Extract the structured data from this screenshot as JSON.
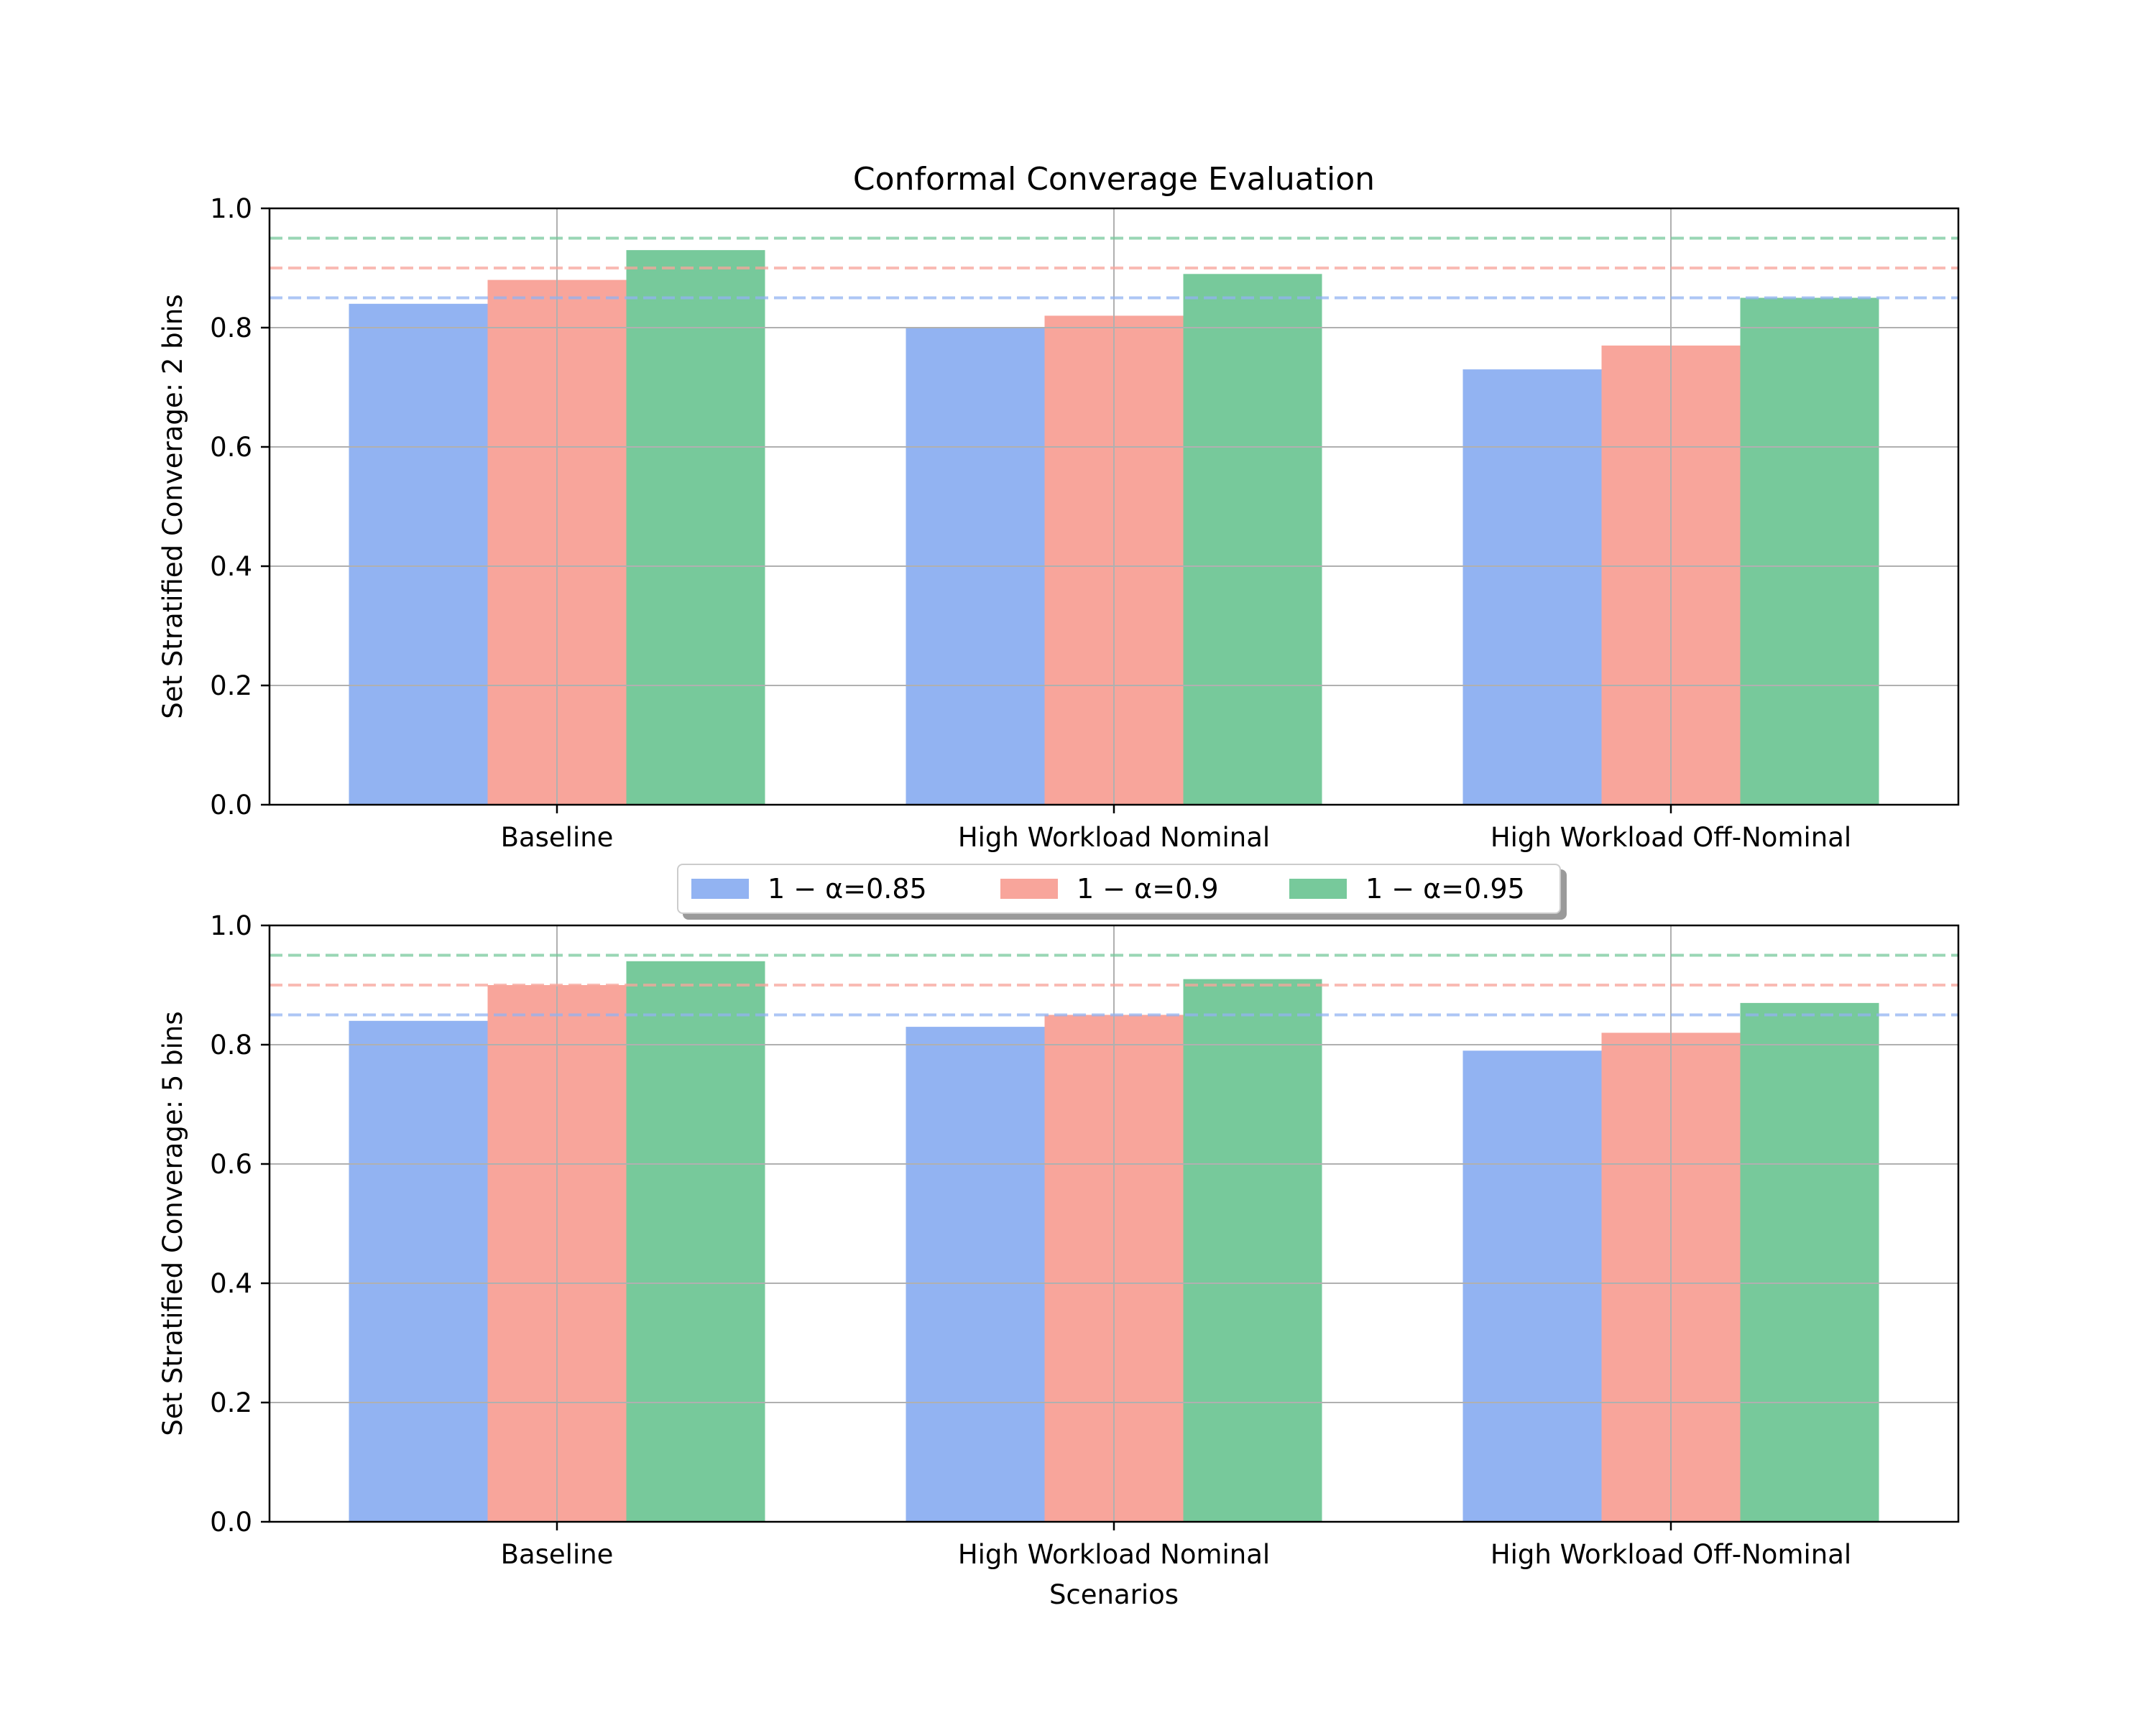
{
  "figure": {
    "title": "Conformal Converage Evaluation"
  },
  "legend": {
    "placement": "between-panels",
    "items": [
      {
        "label": "1 − α=0.85",
        "color": "#92b3f2"
      },
      {
        "label": "1 − α=0.9",
        "color": "#f8a59b"
      },
      {
        "label": "1 − α=0.95",
        "color": "#77c99b"
      }
    ]
  },
  "chart_data": [
    {
      "type": "bar",
      "title": "Conformal Converage Evaluation",
      "xlabel": "",
      "ylabel": "Set Stratified Converage: 2 bins",
      "categories": [
        "Baseline",
        "High Workload Nominal",
        "High Workload Off-Nominal"
      ],
      "series": [
        {
          "name": "1 − α=0.85",
          "color": "#92b3f2",
          "values": [
            0.84,
            0.8,
            0.73
          ]
        },
        {
          "name": "1 − α=0.9",
          "color": "#f8a59b",
          "values": [
            0.88,
            0.82,
            0.77
          ]
        },
        {
          "name": "1 − α=0.95",
          "color": "#77c99b",
          "values": [
            0.93,
            0.89,
            0.85
          ]
        }
      ],
      "reference_lines": [
        {
          "y": 0.85,
          "color": "#92b3f2",
          "style": "dashed"
        },
        {
          "y": 0.9,
          "color": "#f8a59b",
          "style": "dashed"
        },
        {
          "y": 0.95,
          "color": "#77c99b",
          "style": "dashed"
        }
      ],
      "ylim": [
        0,
        1.0
      ],
      "yticks": [
        "0.0",
        "0.2",
        "0.4",
        "0.6",
        "0.8",
        "1.0"
      ],
      "grid": true
    },
    {
      "type": "bar",
      "title": "",
      "xlabel": "Scenarios",
      "ylabel": "Set Stratified Converage: 5 bins",
      "categories": [
        "Baseline",
        "High Workload Nominal",
        "High Workload Off-Nominal"
      ],
      "series": [
        {
          "name": "1 − α=0.85",
          "color": "#92b3f2",
          "values": [
            0.84,
            0.83,
            0.79
          ]
        },
        {
          "name": "1 − α=0.9",
          "color": "#f8a59b",
          "values": [
            0.9,
            0.85,
            0.82
          ]
        },
        {
          "name": "1 − α=0.95",
          "color": "#77c99b",
          "values": [
            0.94,
            0.91,
            0.87
          ]
        }
      ],
      "reference_lines": [
        {
          "y": 0.85,
          "color": "#92b3f2",
          "style": "dashed"
        },
        {
          "y": 0.9,
          "color": "#f8a59b",
          "style": "dashed"
        },
        {
          "y": 0.95,
          "color": "#77c99b",
          "style": "dashed"
        }
      ],
      "ylim": [
        0,
        1.0
      ],
      "yticks": [
        "0.0",
        "0.2",
        "0.4",
        "0.6",
        "0.8",
        "1.0"
      ],
      "grid": true
    }
  ]
}
